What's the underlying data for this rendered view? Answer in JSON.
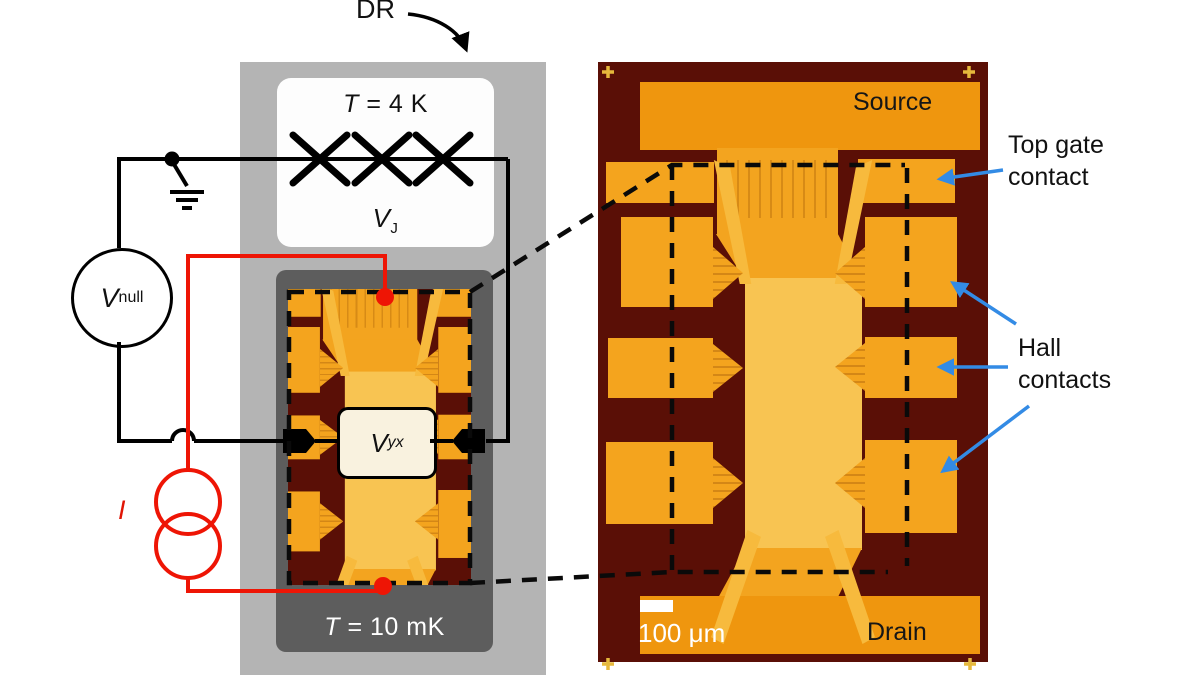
{
  "labels": {
    "dr": "DR",
    "t4k_sym": "T",
    "t4k_rest": " = 4 K",
    "vj_main": "V",
    "vj_sub": "J",
    "t10_sym": "T",
    "t10_rest": " = 10 mK",
    "vnull_main": "V",
    "vnull_sub": "null",
    "vyx_main": "V",
    "vyx_sub": "yx",
    "current": "I"
  },
  "micrograph": {
    "source": "Source",
    "drain": "Drain",
    "scale_bar": "100 μm"
  },
  "annotations": {
    "top_gate_line1": "Top gate",
    "top_gate_line2": "contact",
    "hall_line1": "Hall",
    "hall_line2": "contacts"
  },
  "colors": {
    "wire_black": "#000000",
    "wire_red": "#ee1505",
    "arrow_blue": "#338be5",
    "chip_background": "#5a0f06",
    "pad_orange": "#f4a41e",
    "bar_gold": "#f8c452",
    "outer_box_gray": "#b4b4b4",
    "inner_box_gray": "#5d5d5d"
  }
}
